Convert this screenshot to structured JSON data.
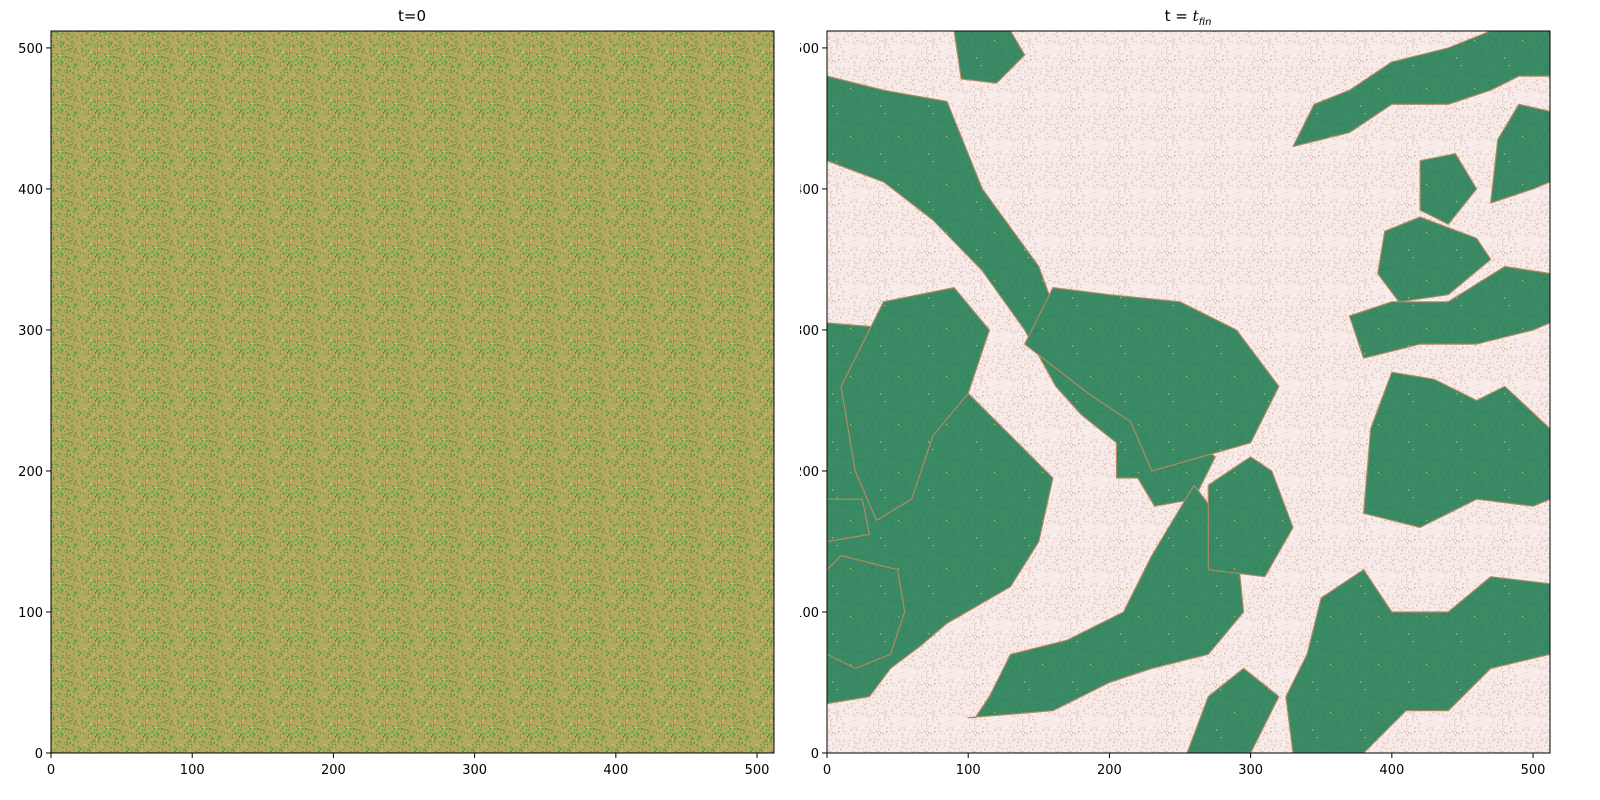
{
  "chart_data": [
    {
      "type": "heatmap",
      "title": "t=0",
      "xlim": [
        0,
        512
      ],
      "ylim": [
        0,
        512
      ],
      "xticks": [
        0,
        100,
        200,
        300,
        400,
        500
      ],
      "yticks": [
        0,
        100,
        200,
        300,
        400,
        500
      ],
      "grid": false,
      "description_colors": {
        "base": "#b3a85a",
        "speckle_green": "#3e9e3a",
        "speckle_tan": "#c8a878",
        "speckle_pink": "#e8c8c0"
      }
    },
    {
      "type": "heatmap",
      "title_prefix": "t = ",
      "title_math": "t",
      "title_sub": "fin",
      "xlim": [
        0,
        512
      ],
      "ylim": [
        0,
        512
      ],
      "xticks": [
        0,
        100,
        200,
        300,
        400,
        500
      ],
      "yticks": [
        0,
        100,
        200,
        300,
        400,
        500
      ],
      "grid": false,
      "description_colors": {
        "green_phase": "#3a8a66",
        "light_phase": "#f7ecea",
        "speckle": "#c4906a"
      },
      "green_regions": [
        [
          [
            0,
            480
          ],
          [
            40,
            470
          ],
          [
            85,
            462
          ],
          [
            110,
            400
          ],
          [
            150,
            345
          ],
          [
            170,
            290
          ],
          [
            200,
            258
          ],
          [
            215,
            240
          ],
          [
            235,
            222
          ],
          [
            265,
            218
          ],
          [
            275,
            210
          ],
          [
            260,
            180
          ],
          [
            232,
            175
          ],
          [
            220,
            195
          ],
          [
            205,
            195
          ],
          [
            205,
            220
          ],
          [
            180,
            240
          ],
          [
            162,
            260
          ],
          [
            140,
            300
          ],
          [
            110,
            342
          ],
          [
            75,
            378
          ],
          [
            40,
            405
          ],
          [
            0,
            420
          ]
        ],
        [
          [
            90,
            512
          ],
          [
            130,
            512
          ],
          [
            140,
            495
          ],
          [
            120,
            475
          ],
          [
            95,
            478
          ]
        ],
        [
          [
            0,
            305
          ],
          [
            60,
            300
          ],
          [
            95,
            260
          ],
          [
            130,
            225
          ],
          [
            160,
            195
          ],
          [
            150,
            150
          ],
          [
            130,
            118
          ],
          [
            85,
            92
          ],
          [
            65,
            75
          ],
          [
            45,
            60
          ],
          [
            30,
            40
          ],
          [
            0,
            35
          ]
        ],
        [
          [
            10,
            140
          ],
          [
            50,
            130
          ],
          [
            55,
            100
          ],
          [
            45,
            70
          ],
          [
            20,
            60
          ],
          [
            0,
            70
          ],
          [
            0,
            130
          ]
        ],
        [
          [
            0,
            180
          ],
          [
            25,
            180
          ],
          [
            30,
            155
          ],
          [
            0,
            150
          ]
        ],
        [
          [
            40,
            320
          ],
          [
            90,
            330
          ],
          [
            115,
            300
          ],
          [
            100,
            255
          ],
          [
            75,
            225
          ],
          [
            60,
            180
          ],
          [
            35,
            165
          ],
          [
            20,
            200
          ],
          [
            10,
            260
          ]
        ],
        [
          [
            100,
            25
          ],
          [
            160,
            30
          ],
          [
            200,
            50
          ],
          [
            230,
            60
          ],
          [
            270,
            70
          ],
          [
            295,
            100
          ],
          [
            290,
            150
          ],
          [
            260,
            190
          ],
          [
            230,
            140
          ],
          [
            210,
            100
          ],
          [
            170,
            80
          ],
          [
            130,
            70
          ],
          [
            115,
            40
          ],
          [
            105,
            25
          ]
        ],
        [
          [
            230,
            200
          ],
          [
            300,
            220
          ],
          [
            320,
            260
          ],
          [
            290,
            300
          ],
          [
            250,
            320
          ],
          [
            200,
            325
          ],
          [
            160,
            330
          ],
          [
            140,
            290
          ],
          [
            185,
            255
          ],
          [
            215,
            235
          ]
        ],
        [
          [
            255,
            0
          ],
          [
            300,
            0
          ],
          [
            320,
            40
          ],
          [
            295,
            60
          ],
          [
            270,
            40
          ]
        ],
        [
          [
            270,
            130
          ],
          [
            310,
            125
          ],
          [
            330,
            160
          ],
          [
            315,
            200
          ],
          [
            300,
            210
          ],
          [
            270,
            190
          ]
        ],
        [
          [
            330,
            0
          ],
          [
            380,
            0
          ],
          [
            410,
            30
          ],
          [
            440,
            30
          ],
          [
            470,
            60
          ],
          [
            512,
            70
          ],
          [
            512,
            120
          ],
          [
            470,
            125
          ],
          [
            440,
            100
          ],
          [
            400,
            100
          ],
          [
            380,
            130
          ],
          [
            350,
            110
          ],
          [
            340,
            70
          ],
          [
            325,
            40
          ]
        ],
        [
          [
            380,
            170
          ],
          [
            420,
            160
          ],
          [
            460,
            180
          ],
          [
            500,
            175
          ],
          [
            512,
            180
          ],
          [
            512,
            230
          ],
          [
            480,
            260
          ],
          [
            460,
            250
          ],
          [
            430,
            265
          ],
          [
            400,
            270
          ],
          [
            385,
            230
          ]
        ],
        [
          [
            330,
            430
          ],
          [
            370,
            440
          ],
          [
            400,
            460
          ],
          [
            440,
            460
          ],
          [
            470,
            470
          ],
          [
            490,
            480
          ],
          [
            512,
            480
          ],
          [
            512,
            512
          ],
          [
            470,
            512
          ],
          [
            440,
            500
          ],
          [
            400,
            490
          ],
          [
            370,
            470
          ],
          [
            345,
            460
          ]
        ],
        [
          [
            470,
            390
          ],
          [
            500,
            400
          ],
          [
            512,
            405
          ],
          [
            512,
            455
          ],
          [
            490,
            460
          ],
          [
            475,
            435
          ]
        ],
        [
          [
            420,
            380
          ],
          [
            460,
            365
          ],
          [
            470,
            350
          ],
          [
            440,
            325
          ],
          [
            405,
            320
          ],
          [
            390,
            340
          ],
          [
            395,
            370
          ]
        ],
        [
          [
            380,
            280
          ],
          [
            420,
            290
          ],
          [
            460,
            290
          ],
          [
            500,
            300
          ],
          [
            512,
            305
          ],
          [
            512,
            340
          ],
          [
            480,
            345
          ],
          [
            440,
            320
          ],
          [
            400,
            320
          ],
          [
            370,
            310
          ]
        ],
        [
          [
            420,
            420
          ],
          [
            445,
            425
          ],
          [
            460,
            400
          ],
          [
            440,
            375
          ],
          [
            420,
            385
          ]
        ]
      ]
    }
  ],
  "titles": {
    "left": "t=0",
    "right_prefix": "t = ",
    "right_math": "t",
    "right_sub": "fin"
  },
  "tick_labels": [
    "0",
    "100",
    "200",
    "300",
    "400",
    "500"
  ]
}
